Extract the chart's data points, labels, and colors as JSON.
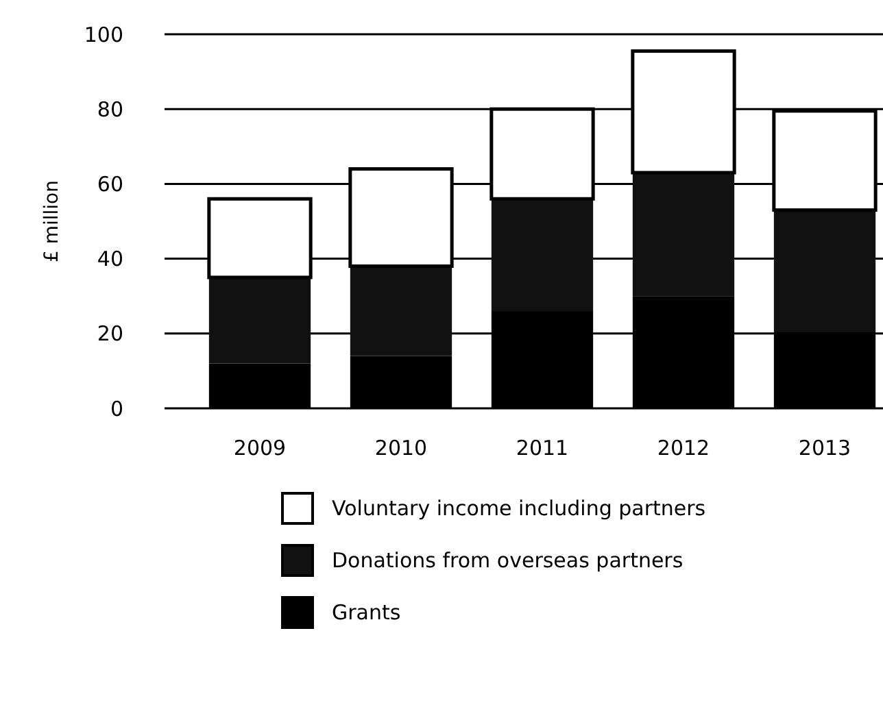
{
  "chart_data": {
    "type": "bar",
    "stacked": true,
    "ylabel": "£ million",
    "categories": [
      "2009",
      "2010",
      "2011",
      "2012",
      "2013"
    ],
    "series": [
      {
        "name": "Grants",
        "color": "#000000",
        "values": [
          12,
          14,
          26,
          30,
          20.5
        ]
      },
      {
        "name": "Donations from overseas partners",
        "color": "#111111",
        "values": [
          23,
          24,
          30,
          33,
          32.5
        ]
      },
      {
        "name": "Voluntary income including partners",
        "color": "#ffffff",
        "values": [
          21,
          26,
          24,
          32.5,
          26.5
        ]
      }
    ],
    "ylim": [
      0,
      100
    ],
    "yticks": [
      0,
      20,
      40,
      60,
      80,
      100
    ],
    "grid": "y",
    "legend": "bottom"
  }
}
